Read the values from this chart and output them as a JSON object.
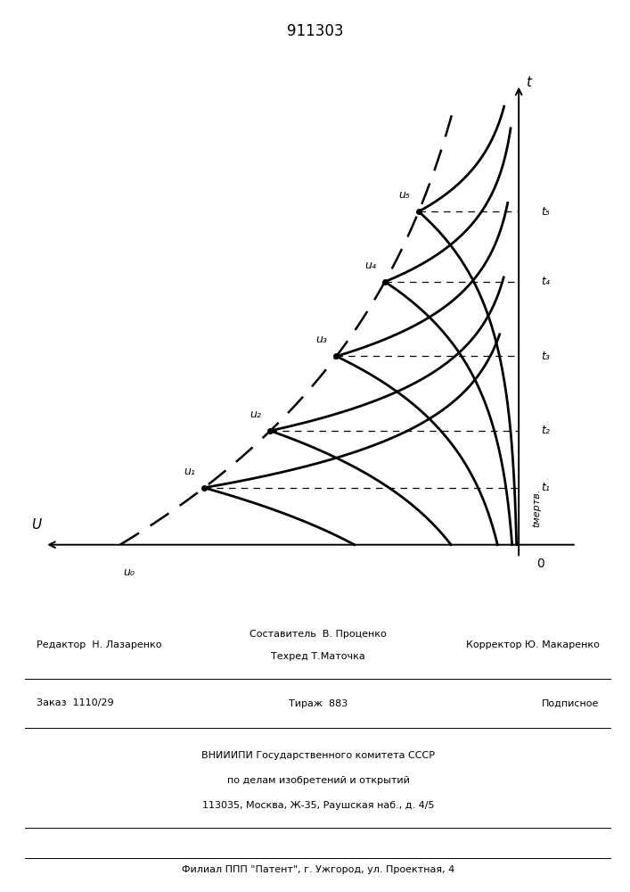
{
  "title": "911303",
  "title_fontsize": 12,
  "line_color": "#000000",
  "fig_width": 7.07,
  "fig_height": 10.0,
  "dpi": 100,
  "t_axis_label": "t",
  "u_axis_label": "U",
  "t_mertv_label": "tмертв.",
  "u0_label": "u₀",
  "t1_label": "t₁",
  "t2_label": "t₂",
  "t3_label": "t₃",
  "t4_label": "t₄",
  "t5_label": "t₅",
  "u1_label": "u₁",
  "u2_label": "u₂",
  "u3_label": "u₃",
  "u4_label": "u₄",
  "u5_label": "u₅",
  "t_vals": [
    0.13,
    0.26,
    0.43,
    0.6,
    0.76
  ],
  "tau_envelope": 0.55,
  "U0": -0.9,
  "decay_alpha": 8.0,
  "rise_k": 5.0,
  "footer_editor": "Редактор  Н. Лазаренко",
  "footer_compiler": "Составитель  В. Проценко",
  "footer_techred": "Техред Т.Маточка",
  "footer_corrector": "Корректор Ю. Макаренко",
  "footer_order": "Заказ  1110/29",
  "footer_tirazh": "Тираж  883",
  "footer_podpisnoe": "Подписное",
  "footer_vniiipi1": "ВНИИИПИ Государственного комитета СССР",
  "footer_vniiipi2": "по делам изобретений и открытий",
  "footer_vniiipi3": "113035, Москва, Ж-35, Раушская наб., д. 4/5",
  "footer_filial": "Филиал ППП \"Патент\", г. Ужгород, ул. Проектная, 4"
}
